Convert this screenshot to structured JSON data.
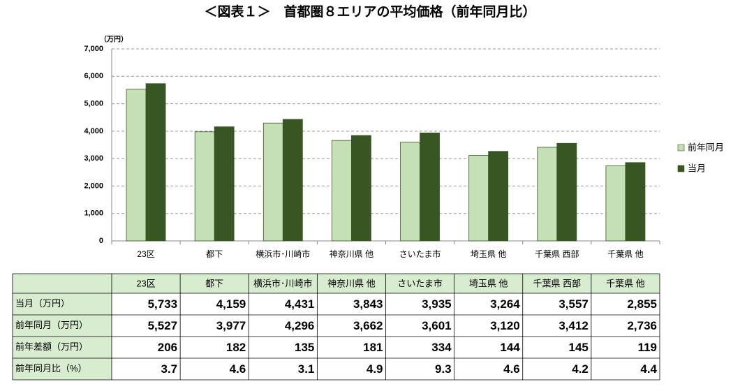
{
  "chart_data": {
    "type": "bar",
    "title": "＜図表１＞　首都圏８エリアの平均価格（前年同月比）",
    "y_label": "（万円）",
    "categories": [
      "23区",
      "都下",
      "横浜市･川崎市",
      "神奈川県 他",
      "さいたま市",
      "埼玉県 他",
      "千葉県 西部",
      "千葉県 他"
    ],
    "series": [
      {
        "name": "前年同月",
        "color": "#c5e0b4",
        "values": [
          5527,
          3977,
          4296,
          3662,
          3601,
          3120,
          3412,
          2736
        ]
      },
      {
        "name": "当月",
        "color": "#375623",
        "values": [
          5733,
          4159,
          4431,
          3843,
          3935,
          3264,
          3557,
          2855
        ]
      }
    ],
    "ylim": [
      0,
      7000
    ],
    "yticks": [
      0,
      {
        "value": 1000,
        "label": "1,000"
      },
      {
        "value": 2000,
        "label": "2,000"
      },
      {
        "value": 3000,
        "label": "3,000"
      },
      {
        "value": 4000,
        "label": "4,000"
      },
      {
        "value": 5000,
        "label": "5,000"
      },
      {
        "value": 6000,
        "label": "6,000"
      },
      {
        "value": 7000,
        "label": "7,000"
      }
    ],
    "grid": true,
    "legend": "right"
  },
  "table": {
    "rows": [
      {
        "label": "当月（万円）",
        "cells": [
          "5,733",
          "4,159",
          "4,431",
          "3,843",
          "3,935",
          "3,264",
          "3,557",
          "2,855"
        ]
      },
      {
        "label": "前年同月（万円）",
        "cells": [
          "5,527",
          "3,977",
          "4,296",
          "3,662",
          "3,601",
          "3,120",
          "3,412",
          "2,736"
        ]
      },
      {
        "label": "前年差額（万円）",
        "cells": [
          "206",
          "182",
          "135",
          "181",
          "334",
          "144",
          "145",
          "119"
        ]
      },
      {
        "label": "前年同月比（%）",
        "cells": [
          "3.7",
          "4.6",
          "3.1",
          "4.9",
          "9.3",
          "4.6",
          "4.2",
          "4.4"
        ]
      }
    ]
  }
}
